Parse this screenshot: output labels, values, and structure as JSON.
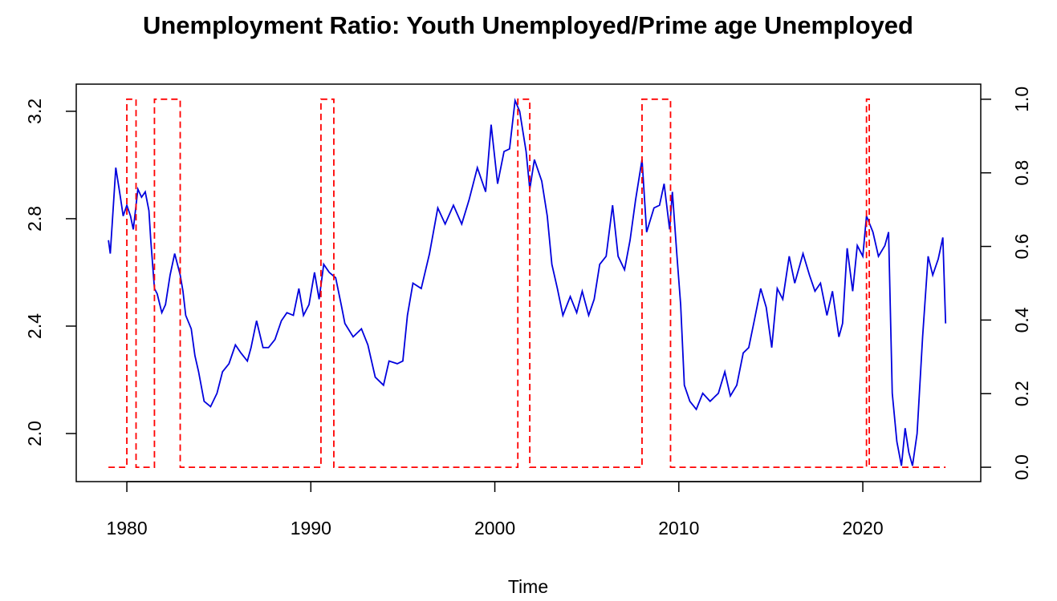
{
  "chart_data": {
    "type": "line",
    "title": "Unemployment Ratio: Youth Unemployed/Prime age Unemployed",
    "x_label": "Time",
    "xlim": [
      1977.25,
      2026.41
    ],
    "xticks": [
      1980,
      1990,
      2000,
      2010,
      2020
    ],
    "ylim": [
      1.821,
      3.301
    ],
    "yticks": [
      {
        "value": 2.0,
        "label": "2.0"
      },
      2.4,
      2.8,
      3.2
    ],
    "y2lim": [
      -0.039,
      1.041
    ],
    "y2ticks": [
      {
        "value": 0.0,
        "label": "0.0"
      },
      0.2,
      0.4,
      0.6,
      0.8,
      {
        "value": 1.0,
        "label": "1.0"
      }
    ],
    "grid": false,
    "series": [
      {
        "color": "#0000dd",
        "line_style": "solid",
        "x": [
          1979.0,
          1979.1,
          1979.4,
          1979.65,
          1979.8,
          1980.0,
          1980.2,
          1980.35,
          1980.6,
          1980.8,
          1981.0,
          1981.2,
          1981.3,
          1981.5,
          1981.65,
          1981.9,
          1982.1,
          1982.35,
          1982.6,
          1982.9,
          1983.05,
          1983.2,
          1983.5,
          1983.7,
          1983.9,
          1984.2,
          1984.55,
          1984.9,
          1985.2,
          1985.55,
          1985.9,
          1986.2,
          1986.55,
          1986.75,
          1987.05,
          1987.4,
          1987.7,
          1988.05,
          1988.4,
          1988.7,
          1989.05,
          1989.35,
          1989.6,
          1989.9,
          1990.2,
          1990.45,
          1990.7,
          1991.0,
          1991.35,
          1991.65,
          1991.85,
          1992.3,
          1992.75,
          1993.1,
          1993.5,
          1993.95,
          1994.25,
          1994.7,
          1995.0,
          1995.25,
          1995.55,
          1996.0,
          1996.45,
          1996.9,
          1997.3,
          1997.75,
          1998.2,
          1998.6,
          1999.05,
          1999.5,
          1999.8,
          2000.15,
          2000.5,
          2000.8,
          2001.1,
          2001.35,
          2001.7,
          2001.9,
          2002.15,
          2002.55,
          2002.85,
          2003.1,
          2003.4,
          2003.7,
          2004.1,
          2004.45,
          2004.75,
          2005.1,
          2005.4,
          2005.7,
          2006.05,
          2006.4,
          2006.7,
          2007.05,
          2007.35,
          2007.65,
          2008.0,
          2008.25,
          2008.65,
          2008.95,
          2009.2,
          2009.5,
          2009.65,
          2009.9,
          2010.1,
          2010.3,
          2010.6,
          2010.95,
          2011.3,
          2011.7,
          2012.15,
          2012.5,
          2012.8,
          2013.15,
          2013.5,
          2013.8,
          2014.1,
          2014.45,
          2014.75,
          2015.05,
          2015.35,
          2015.65,
          2016.0,
          2016.3,
          2016.75,
          2017.1,
          2017.4,
          2017.7,
          2018.05,
          2018.35,
          2018.7,
          2018.9,
          2019.15,
          2019.45,
          2019.7,
          2020.0,
          2020.2,
          2020.55,
          2020.85,
          2021.2,
          2021.4,
          2021.6,
          2021.85,
          2022.1,
          2022.3,
          2022.5,
          2022.7,
          2022.95,
          2023.25,
          2023.55,
          2023.8,
          2024.1,
          2024.35,
          2024.5
        ],
        "values": [
          2.72,
          2.67,
          2.99,
          2.88,
          2.81,
          2.85,
          2.81,
          2.76,
          2.91,
          2.88,
          2.9,
          2.83,
          2.72,
          2.54,
          2.52,
          2.45,
          2.48,
          2.59,
          2.67,
          2.59,
          2.53,
          2.44,
          2.39,
          2.29,
          2.23,
          2.12,
          2.1,
          2.15,
          2.23,
          2.26,
          2.33,
          2.3,
          2.27,
          2.32,
          2.42,
          2.32,
          2.32,
          2.35,
          2.42,
          2.45,
          2.44,
          2.54,
          2.44,
          2.48,
          2.6,
          2.5,
          2.63,
          2.6,
          2.58,
          2.48,
          2.41,
          2.36,
          2.39,
          2.33,
          2.21,
          2.18,
          2.27,
          2.26,
          2.27,
          2.44,
          2.56,
          2.54,
          2.67,
          2.84,
          2.78,
          2.85,
          2.78,
          2.87,
          2.99,
          2.9,
          3.15,
          2.93,
          3.05,
          3.06,
          3.24,
          3.2,
          3.05,
          2.91,
          3.02,
          2.94,
          2.81,
          2.63,
          2.54,
          2.44,
          2.51,
          2.45,
          2.53,
          2.44,
          2.5,
          2.63,
          2.66,
          2.85,
          2.66,
          2.61,
          2.72,
          2.87,
          3.02,
          2.75,
          2.84,
          2.85,
          2.93,
          2.76,
          2.9,
          2.66,
          2.48,
          2.18,
          2.12,
          2.09,
          2.15,
          2.12,
          2.15,
          2.23,
          2.14,
          2.18,
          2.3,
          2.32,
          2.42,
          2.54,
          2.47,
          2.32,
          2.54,
          2.5,
          2.66,
          2.56,
          2.67,
          2.59,
          2.53,
          2.56,
          2.44,
          2.53,
          2.36,
          2.41,
          2.69,
          2.53,
          2.7,
          2.66,
          2.81,
          2.75,
          2.66,
          2.7,
          2.75,
          2.15,
          1.97,
          1.88,
          2.02,
          1.93,
          1.88,
          2.0,
          2.36,
          2.66,
          2.59,
          2.65,
          2.73,
          2.41
        ]
      },
      {
        "color": "#ff0000",
        "line_style": "dashed",
        "axis": "y2",
        "x": [
          1979.0,
          1980.0,
          1980.0,
          1980.5,
          1980.5,
          1981.5,
          1981.5,
          1982.9,
          1982.9,
          1990.55,
          1990.55,
          1991.25,
          1991.25,
          2001.25,
          2001.25,
          2001.9,
          2001.9,
          2008.0,
          2008.0,
          2009.55,
          2009.55,
          2020.2,
          2020.2,
          2020.35,
          2020.35,
          2024.5
        ],
        "values": [
          0,
          0,
          1,
          1,
          0,
          0,
          1,
          1,
          0,
          0,
          1,
          1,
          0,
          0,
          1,
          1,
          0,
          0,
          1,
          1,
          0,
          0,
          1,
          1,
          0,
          0
        ]
      }
    ]
  }
}
